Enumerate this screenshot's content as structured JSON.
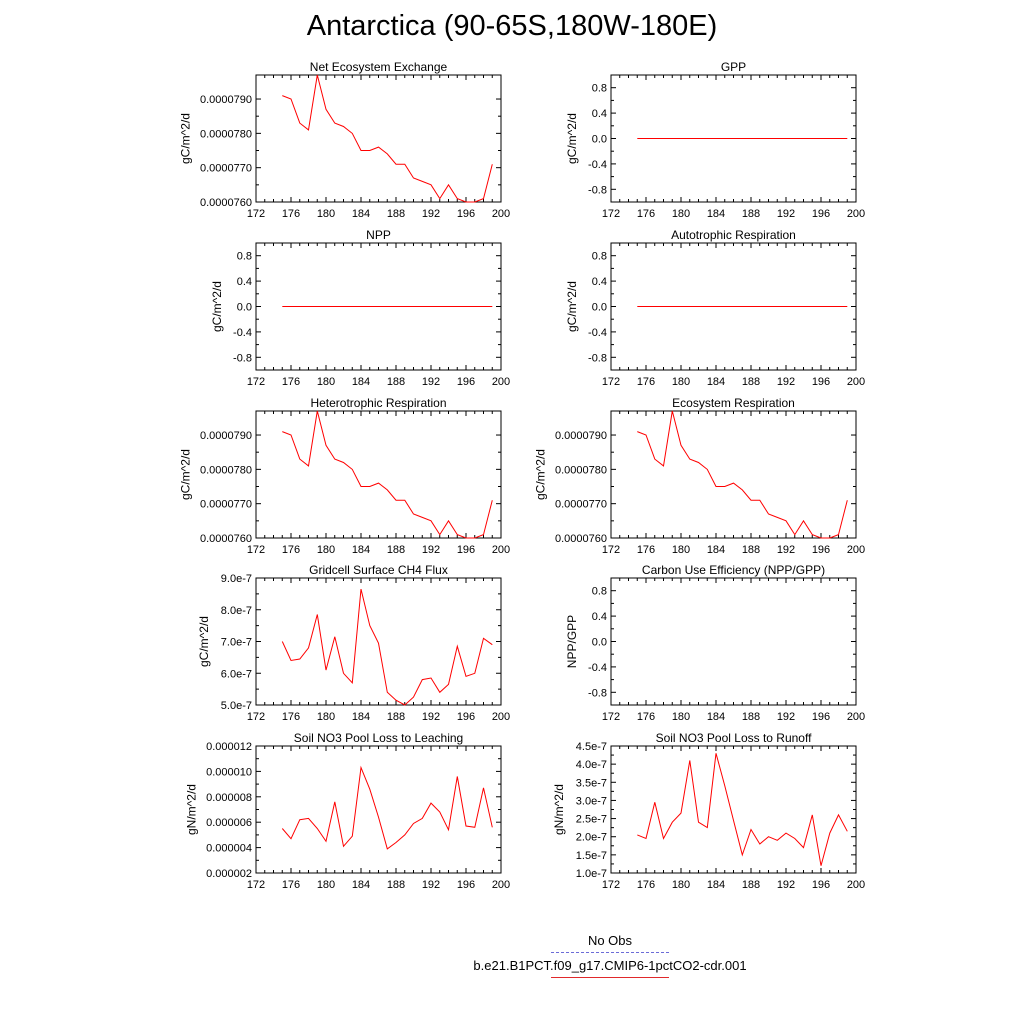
{
  "figure": {
    "title": "Antarctica (90-65S,180W-180E)"
  },
  "legend": {
    "entries": [
      {
        "label": "No Obs",
        "style": "dashed",
        "color": "#6b6bd8"
      },
      {
        "label": "b.e21.B1PCT.f09_g17.CMIP6-1pctCO2-cdr.001",
        "style": "solid",
        "color": "#e0292b"
      }
    ]
  },
  "colors": {
    "series": "#ff0000",
    "axis": "#000000"
  },
  "chart_data": [
    {
      "type": "line",
      "title": "Net Ecosystem Exchange",
      "ylabel": "gC/m^2/d",
      "xlim": [
        172,
        200
      ],
      "xticks": [
        "172",
        "176",
        "180",
        "184",
        "188",
        "192",
        "196",
        "200"
      ],
      "ylim": [
        7.6e-05,
        7.97e-05
      ],
      "yticks": [
        {
          "v": 7.6e-05,
          "label": "0.0000760"
        },
        {
          "v": 7.7e-05,
          "label": "0.0000770"
        },
        {
          "v": 7.8e-05,
          "label": "0.0000780"
        },
        {
          "v": 7.9e-05,
          "label": "0.0000790"
        }
      ],
      "x": [
        175,
        176,
        177,
        178,
        179,
        180,
        181,
        182,
        183,
        184,
        185,
        186,
        187,
        188,
        189,
        190,
        191,
        192,
        193,
        194,
        195,
        196,
        197,
        198,
        199
      ],
      "y": [
        7.91e-05,
        7.9e-05,
        7.83e-05,
        7.81e-05,
        7.97e-05,
        7.87e-05,
        7.83e-05,
        7.82e-05,
        7.8e-05,
        7.75e-05,
        7.75e-05,
        7.76e-05,
        7.74e-05,
        7.71e-05,
        7.71e-05,
        7.67e-05,
        7.66e-05,
        7.65e-05,
        7.61e-05,
        7.65e-05,
        7.61e-05,
        7.6e-05,
        7.6e-05,
        7.61e-05,
        7.71e-05
      ]
    },
    {
      "type": "line",
      "title": "GPP",
      "ylabel": "gC/m^2/d",
      "xlim": [
        172,
        200
      ],
      "xticks": [
        "172",
        "176",
        "180",
        "184",
        "188",
        "192",
        "196",
        "200"
      ],
      "ylim": [
        -1,
        1
      ],
      "yticks": [
        {
          "v": -0.8,
          "label": "-0.8"
        },
        {
          "v": -0.4,
          "label": "-0.4"
        },
        {
          "v": 0,
          "label": "0.0"
        },
        {
          "v": 0.4,
          "label": "0.4"
        },
        {
          "v": 0.8,
          "label": "0.8"
        }
      ],
      "x": [
        175,
        199
      ],
      "y": [
        0,
        0
      ]
    },
    {
      "type": "line",
      "title": "NPP",
      "ylabel": "gC/m^2/d",
      "xlim": [
        172,
        200
      ],
      "xticks": [
        "172",
        "176",
        "180",
        "184",
        "188",
        "192",
        "196",
        "200"
      ],
      "ylim": [
        -1,
        1
      ],
      "yticks": [
        {
          "v": -0.8,
          "label": "-0.8"
        },
        {
          "v": -0.4,
          "label": "-0.4"
        },
        {
          "v": 0,
          "label": "0.0"
        },
        {
          "v": 0.4,
          "label": "0.4"
        },
        {
          "v": 0.8,
          "label": "0.8"
        }
      ],
      "x": [
        175,
        199
      ],
      "y": [
        0,
        0
      ]
    },
    {
      "type": "line",
      "title": "Autotrophic Respiration",
      "ylabel": "gC/m^2/d",
      "xlim": [
        172,
        200
      ],
      "xticks": [
        "172",
        "176",
        "180",
        "184",
        "188",
        "192",
        "196",
        "200"
      ],
      "ylim": [
        -1,
        1
      ],
      "yticks": [
        {
          "v": -0.8,
          "label": "-0.8"
        },
        {
          "v": -0.4,
          "label": "-0.4"
        },
        {
          "v": 0,
          "label": "0.0"
        },
        {
          "v": 0.4,
          "label": "0.4"
        },
        {
          "v": 0.8,
          "label": "0.8"
        }
      ],
      "x": [
        175,
        199
      ],
      "y": [
        0,
        0
      ]
    },
    {
      "type": "line",
      "title": "Heterotrophic Respiration",
      "ylabel": "gC/m^2/d",
      "xlim": [
        172,
        200
      ],
      "xticks": [
        "172",
        "176",
        "180",
        "184",
        "188",
        "192",
        "196",
        "200"
      ],
      "ylim": [
        7.6e-05,
        7.97e-05
      ],
      "yticks": [
        {
          "v": 7.6e-05,
          "label": "0.0000760"
        },
        {
          "v": 7.7e-05,
          "label": "0.0000770"
        },
        {
          "v": 7.8e-05,
          "label": "0.0000780"
        },
        {
          "v": 7.9e-05,
          "label": "0.0000790"
        }
      ],
      "x": [
        175,
        176,
        177,
        178,
        179,
        180,
        181,
        182,
        183,
        184,
        185,
        186,
        187,
        188,
        189,
        190,
        191,
        192,
        193,
        194,
        195,
        196,
        197,
        198,
        199
      ],
      "y": [
        7.91e-05,
        7.9e-05,
        7.83e-05,
        7.81e-05,
        7.97e-05,
        7.87e-05,
        7.83e-05,
        7.82e-05,
        7.8e-05,
        7.75e-05,
        7.75e-05,
        7.76e-05,
        7.74e-05,
        7.71e-05,
        7.71e-05,
        7.67e-05,
        7.66e-05,
        7.65e-05,
        7.61e-05,
        7.65e-05,
        7.61e-05,
        7.6e-05,
        7.6e-05,
        7.61e-05,
        7.71e-05
      ]
    },
    {
      "type": "line",
      "title": "Ecosystem Respiration",
      "ylabel": "gC/m^2/d",
      "xlim": [
        172,
        200
      ],
      "xticks": [
        "172",
        "176",
        "180",
        "184",
        "188",
        "192",
        "196",
        "200"
      ],
      "ylim": [
        7.6e-05,
        7.97e-05
      ],
      "yticks": [
        {
          "v": 7.6e-05,
          "label": "0.0000760"
        },
        {
          "v": 7.7e-05,
          "label": "0.0000770"
        },
        {
          "v": 7.8e-05,
          "label": "0.0000780"
        },
        {
          "v": 7.9e-05,
          "label": "0.0000790"
        }
      ],
      "x": [
        175,
        176,
        177,
        178,
        179,
        180,
        181,
        182,
        183,
        184,
        185,
        186,
        187,
        188,
        189,
        190,
        191,
        192,
        193,
        194,
        195,
        196,
        197,
        198,
        199
      ],
      "y": [
        7.91e-05,
        7.9e-05,
        7.83e-05,
        7.81e-05,
        7.97e-05,
        7.87e-05,
        7.83e-05,
        7.82e-05,
        7.8e-05,
        7.75e-05,
        7.75e-05,
        7.76e-05,
        7.74e-05,
        7.71e-05,
        7.71e-05,
        7.67e-05,
        7.66e-05,
        7.65e-05,
        7.61e-05,
        7.65e-05,
        7.61e-05,
        7.6e-05,
        7.6e-05,
        7.61e-05,
        7.71e-05
      ]
    },
    {
      "type": "line",
      "title": "Gridcell Surface CH4 Flux",
      "ylabel": "gC/m^2/d",
      "xlim": [
        172,
        200
      ],
      "xticks": [
        "172",
        "176",
        "180",
        "184",
        "188",
        "192",
        "196",
        "200"
      ],
      "ylim": [
        5e-07,
        9e-07
      ],
      "yticks": [
        {
          "v": 5e-07,
          "label": "5.0e-7"
        },
        {
          "v": 6e-07,
          "label": "6.0e-7"
        },
        {
          "v": 7e-07,
          "label": "7.0e-7"
        },
        {
          "v": 8e-07,
          "label": "8.0e-7"
        },
        {
          "v": 9e-07,
          "label": "9.0e-7"
        }
      ],
      "x": [
        175,
        176,
        177,
        178,
        179,
        180,
        181,
        182,
        183,
        184,
        185,
        186,
        187,
        188,
        189,
        190,
        191,
        192,
        193,
        194,
        195,
        196,
        197,
        198,
        199
      ],
      "y": [
        7e-07,
        6.4e-07,
        6.45e-07,
        6.8e-07,
        7.85e-07,
        6.1e-07,
        7.15e-07,
        6e-07,
        5.7e-07,
        8.65e-07,
        7.5e-07,
        6.95e-07,
        5.4e-07,
        5.15e-07,
        5e-07,
        5.25e-07,
        5.8e-07,
        5.85e-07,
        5.4e-07,
        5.65e-07,
        6.85e-07,
        5.9e-07,
        6e-07,
        7.1e-07,
        6.9e-07
      ]
    },
    {
      "type": "line",
      "title": "Carbon Use Efficiency (NPP/GPP)",
      "ylabel": "NPP/GPP",
      "xlim": [
        172,
        200
      ],
      "xticks": [
        "172",
        "176",
        "180",
        "184",
        "188",
        "192",
        "196",
        "200"
      ],
      "ylim": [
        -1,
        1
      ],
      "yticks": [
        {
          "v": -0.8,
          "label": "-0.8"
        },
        {
          "v": -0.4,
          "label": "-0.4"
        },
        {
          "v": 0,
          "label": "0.0"
        },
        {
          "v": 0.4,
          "label": "0.4"
        },
        {
          "v": 0.8,
          "label": "0.8"
        }
      ],
      "x": [],
      "y": []
    },
    {
      "type": "line",
      "title": "Soil NO3 Pool Loss to Leaching",
      "ylabel": "gN/m^2/d",
      "xlim": [
        172,
        200
      ],
      "xticks": [
        "172",
        "176",
        "180",
        "184",
        "188",
        "192",
        "196",
        "200"
      ],
      "ylim": [
        2e-06,
        1.2e-05
      ],
      "yticks": [
        {
          "v": 2e-06,
          "label": "0.000002"
        },
        {
          "v": 4e-06,
          "label": "0.000004"
        },
        {
          "v": 6e-06,
          "label": "0.000006"
        },
        {
          "v": 8e-06,
          "label": "0.000008"
        },
        {
          "v": 1e-05,
          "label": "0.000010"
        },
        {
          "v": 1.2e-05,
          "label": "0.000012"
        }
      ],
      "x": [
        175,
        176,
        177,
        178,
        179,
        180,
        181,
        182,
        183,
        184,
        185,
        186,
        187,
        188,
        189,
        190,
        191,
        192,
        193,
        194,
        195,
        196,
        197,
        198,
        199
      ],
      "y": [
        5.5e-06,
        4.7e-06,
        6.2e-06,
        6.3e-06,
        5.5e-06,
        4.5e-06,
        7.6e-06,
        4.1e-06,
        4.9e-06,
        1.03e-05,
        8.6e-06,
        6.4e-06,
        3.9e-06,
        4.4e-06,
        5e-06,
        5.9e-06,
        6.3e-06,
        7.5e-06,
        6.8e-06,
        5.4e-06,
        9.6e-06,
        5.7e-06,
        5.6e-06,
        8.7e-06,
        5.6e-06
      ]
    },
    {
      "type": "line",
      "title": "Soil NO3 Pool Loss to Runoff",
      "ylabel": "gN/m^2/d",
      "xlim": [
        172,
        200
      ],
      "xticks": [
        "172",
        "176",
        "180",
        "184",
        "188",
        "192",
        "196",
        "200"
      ],
      "ylim": [
        1e-07,
        4.5e-07
      ],
      "yticks": [
        {
          "v": 1e-07,
          "label": "1.0e-7"
        },
        {
          "v": 1.5e-07,
          "label": "1.5e-7"
        },
        {
          "v": 2e-07,
          "label": "2.0e-7"
        },
        {
          "v": 2.5e-07,
          "label": "2.5e-7"
        },
        {
          "v": 3e-07,
          "label": "3.0e-7"
        },
        {
          "v": 3.5e-07,
          "label": "3.5e-7"
        },
        {
          "v": 4e-07,
          "label": "4.0e-7"
        },
        {
          "v": 4.5e-07,
          "label": "4.5e-7"
        }
      ],
      "x": [
        175,
        176,
        177,
        178,
        179,
        180,
        181,
        182,
        183,
        184,
        185,
        186,
        187,
        188,
        189,
        190,
        191,
        192,
        193,
        194,
        195,
        196,
        197,
        198,
        199
      ],
      "y": [
        2.05e-07,
        1.95e-07,
        2.95e-07,
        1.95e-07,
        2.4e-07,
        2.65e-07,
        4.1e-07,
        2.4e-07,
        2.25e-07,
        4.3e-07,
        3.4e-07,
        2.45e-07,
        1.5e-07,
        2.2e-07,
        1.8e-07,
        2e-07,
        1.9e-07,
        2.1e-07,
        1.95e-07,
        1.7e-07,
        2.6e-07,
        1.2e-07,
        2.1e-07,
        2.6e-07,
        2.15e-07
      ]
    }
  ]
}
